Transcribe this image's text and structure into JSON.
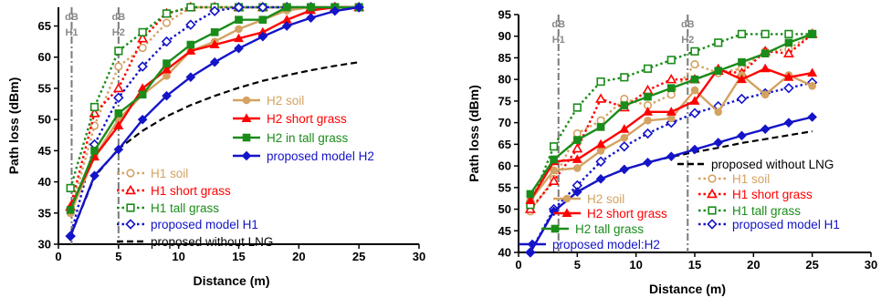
{
  "chart_data": [
    {
      "type": "line",
      "xlabel": "Distance (m)",
      "ylabel": "Path loss (dBm)",
      "xlim": [
        0,
        30
      ],
      "ylim": [
        30,
        68
      ],
      "xticks": [
        0,
        5,
        10,
        15,
        20,
        25,
        30
      ],
      "yticks": [
        30,
        35,
        40,
        45,
        50,
        55,
        60,
        65
      ],
      "markers": [
        {
          "x": 1.1,
          "label_top": "dB",
          "label_bottom": "H1"
        },
        {
          "x": 5.0,
          "label_top": "dB",
          "label_bottom": "H2"
        }
      ],
      "legend_position": "right",
      "series": [
        {
          "name": "H2 soil",
          "color": "#d4a261",
          "style": "solid",
          "marker": "circle-filled",
          "x": [
            1,
            3,
            5,
            7,
            9,
            11,
            13,
            15,
            17,
            19,
            21,
            23,
            25
          ],
          "y": [
            35,
            44,
            50,
            54,
            57,
            61,
            62.5,
            64.5,
            66,
            67.5,
            68,
            68,
            68
          ]
        },
        {
          "name": "H2 short grass",
          "color": "#ff0000",
          "style": "solid",
          "marker": "triangle-filled",
          "x": [
            1,
            3,
            5,
            7,
            9,
            11,
            13,
            15,
            17,
            19,
            21,
            23,
            25
          ],
          "y": [
            36,
            44,
            49,
            55,
            58,
            61,
            62,
            63,
            64,
            66,
            67.5,
            68,
            68
          ]
        },
        {
          "name": "H2 in tall grass",
          "color": "#1a8c1a",
          "style": "solid",
          "marker": "square-filled",
          "x": [
            1,
            3,
            5,
            7,
            9,
            11,
            13,
            15,
            17,
            19,
            21,
            23,
            25
          ],
          "y": [
            35.5,
            45,
            51,
            54,
            59,
            62,
            64,
            66,
            66,
            68,
            68,
            68,
            68
          ]
        },
        {
          "name": "proposed model H2",
          "color": "#1414c8",
          "style": "solid",
          "marker": "diamond-filled",
          "x": [
            1,
            3,
            5,
            7,
            9,
            11,
            13,
            15,
            17,
            19,
            21,
            23,
            25
          ],
          "y": [
            31.3,
            41,
            45.2,
            50,
            53.8,
            56.8,
            59.2,
            61.4,
            63.3,
            65,
            66.3,
            67.4,
            68
          ]
        },
        {
          "name": "H1 soil",
          "color": "#d4a261",
          "style": "dotted",
          "marker": "circle-open",
          "x": [
            1,
            3,
            5,
            7,
            9,
            11,
            13,
            15,
            17,
            19,
            21,
            23,
            25
          ],
          "y": [
            35,
            49,
            58.5,
            61.5,
            65.5,
            68,
            68,
            68,
            68,
            68,
            68,
            68,
            68
          ]
        },
        {
          "name": "H1 short grass",
          "color": "#ff0000",
          "style": "dotted",
          "marker": "triangle-open",
          "x": [
            1,
            3,
            5,
            7,
            9,
            11,
            13,
            15,
            17,
            19,
            21,
            23,
            25
          ],
          "y": [
            36,
            51,
            55,
            63,
            67,
            68,
            68,
            68,
            68,
            68,
            68,
            68,
            68
          ]
        },
        {
          "name": "H1 tall grass",
          "color": "#1a8c1a",
          "style": "dotted",
          "marker": "square-open",
          "x": [
            1,
            3,
            5,
            7,
            9,
            11,
            13,
            15,
            17,
            19,
            21,
            23,
            25
          ],
          "y": [
            39,
            52,
            61,
            64,
            67,
            68,
            68,
            68,
            68,
            68,
            68,
            68,
            68
          ]
        },
        {
          "name": "proposed model H1",
          "color": "#1414c8",
          "style": "dotted",
          "marker": "diamond-open",
          "x": [
            1,
            3,
            5,
            7,
            9,
            11,
            13,
            15,
            17,
            19,
            21,
            23,
            25
          ],
          "y": [
            31.3,
            46,
            53.5,
            58.5,
            62.5,
            65.2,
            67.4,
            68,
            68,
            68,
            68,
            68,
            68
          ]
        },
        {
          "name": "proposed without LNG",
          "color": "#000000",
          "style": "dashed",
          "marker": "none",
          "x": [
            1,
            3,
            5,
            7,
            9,
            11,
            13,
            15,
            17,
            19,
            21,
            23,
            25
          ],
          "y": [
            31.3,
            40.8,
            45.3,
            48.2,
            50.5,
            52.3,
            53.8,
            55.1,
            56.2,
            57.1,
            57.9,
            58.6,
            59.2
          ]
        }
      ]
    },
    {
      "type": "line",
      "xlabel": "Distance (m)",
      "ylabel": "Path loss (dBm)",
      "xlim": [
        0,
        30
      ],
      "ylim": [
        40,
        95
      ],
      "xticks": [
        0,
        5,
        10,
        15,
        20,
        25,
        30
      ],
      "yticks": [
        40,
        45,
        50,
        55,
        60,
        65,
        70,
        75,
        80,
        85,
        90,
        95
      ],
      "markers": [
        {
          "x": 3.4,
          "label_top": "dB",
          "label_bottom": "H1"
        },
        {
          "x": 14.4,
          "label_top": "dB",
          "label_bottom": "H2"
        }
      ],
      "legend_position": "center",
      "series": [
        {
          "name": "H2 soil",
          "color": "#d4a261",
          "style": "solid",
          "marker": "circle-filled",
          "x": [
            1,
            3,
            5,
            7,
            9,
            11,
            13,
            15,
            17,
            19,
            21,
            23,
            25
          ],
          "y": [
            52,
            59,
            59.5,
            63.5,
            66.5,
            70.5,
            71,
            77.5,
            72.5,
            81,
            76.5,
            81,
            78.5
          ]
        },
        {
          "name": "H2 short grass",
          "color": "#ff0000",
          "style": "solid",
          "marker": "triangle-filled",
          "x": [
            1,
            3,
            5,
            7,
            9,
            11,
            13,
            15,
            17,
            19,
            21,
            23,
            25
          ],
          "y": [
            52,
            61,
            61.5,
            65,
            68.5,
            72.5,
            72.5,
            75,
            82.5,
            80,
            82.5,
            80.5,
            81.5
          ]
        },
        {
          "name": "H2 tall grass",
          "color": "#1a8c1a",
          "style": "solid",
          "marker": "square-filled",
          "x": [
            1,
            3,
            5,
            7,
            9,
            11,
            13,
            15,
            17,
            19,
            21,
            23,
            25
          ],
          "y": [
            53.5,
            61.5,
            66,
            69,
            74,
            76,
            78,
            80,
            82,
            84,
            86,
            88.5,
            90.5
          ]
        },
        {
          "name": "proposed model:H2",
          "color": "#1414c8",
          "style": "solid",
          "marker": "diamond-filled",
          "x": [
            1,
            3,
            5,
            7,
            9,
            11,
            13,
            15,
            17,
            19,
            21,
            23,
            25
          ],
          "y": [
            40,
            49.5,
            54,
            57,
            59.2,
            60.8,
            62.2,
            63.8,
            65.4,
            67,
            68.5,
            70,
            71.3
          ]
        },
        {
          "name": "H1 soil",
          "color": "#d4a261",
          "style": "dotted",
          "marker": "circle-open",
          "x": [
            1,
            3,
            5,
            7,
            9,
            11,
            13,
            15,
            17,
            19,
            21,
            23,
            25
          ],
          "y": [
            49.5,
            57,
            67.5,
            70.5,
            75.5,
            74,
            76.5,
            83.5,
            81.5,
            82.5,
            86.5,
            87,
            90.5
          ]
        },
        {
          "name": "H1 short grass",
          "color": "#ff0000",
          "style": "dotted",
          "marker": "triangle-open",
          "x": [
            1,
            3,
            5,
            7,
            9,
            11,
            13,
            15,
            17,
            19,
            21,
            23,
            25
          ],
          "y": [
            50,
            56.5,
            64,
            75.5,
            73.5,
            77.5,
            80,
            80,
            82,
            81.5,
            86.5,
            86,
            90.5
          ]
        },
        {
          "name": "H1 tall grass",
          "color": "#1a8c1a",
          "style": "dotted",
          "marker": "square-open",
          "x": [
            1,
            3,
            5,
            7,
            9,
            11,
            13,
            15,
            17,
            19,
            21,
            23,
            25
          ],
          "y": [
            51,
            64.5,
            73.5,
            79.5,
            80.5,
            82.5,
            84.5,
            86.5,
            88.5,
            90.5,
            90.5,
            90.5,
            90.5
          ]
        },
        {
          "name": "proposed model H1",
          "color": "#1414c8",
          "style": "dotted",
          "marker": "diamond-open",
          "x": [
            1,
            3,
            5,
            7,
            9,
            11,
            13,
            15,
            17,
            19,
            21,
            23,
            25
          ],
          "y": [
            40,
            50,
            55.5,
            61,
            64.5,
            67.5,
            70,
            72.2,
            73.8,
            75.5,
            76.8,
            78,
            79.3
          ]
        },
        {
          "name": "proposed without LNG",
          "color": "#000000",
          "style": "dashed",
          "marker": "none",
          "x": [
            1,
            3,
            5,
            7,
            9,
            11,
            13,
            15,
            17,
            19,
            21,
            23,
            25
          ],
          "y": [
            40,
            49.5,
            54,
            57,
            59.2,
            60.8,
            62.1,
            63.2,
            64.2,
            65.3,
            66.2,
            67.1,
            68
          ]
        }
      ]
    }
  ]
}
